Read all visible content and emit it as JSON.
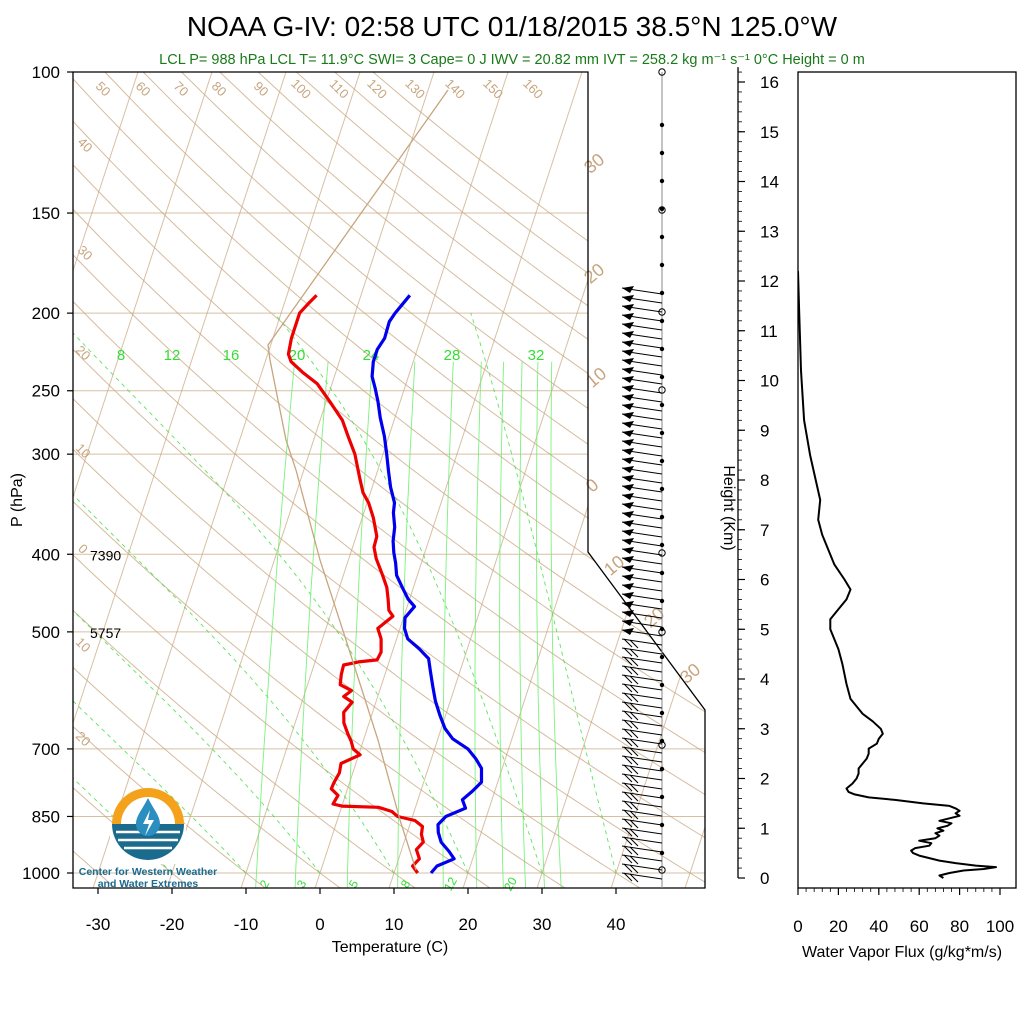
{
  "title": "NOAA G-IV: 02:58 UTC 01/18/2015  38.5°N 125.0°W",
  "subtitle": "LCL P= 988 hPa  LCL T= 11.9°C  SWI= 3  Cape= 0 J  IWV = 20.82 mm  IVT = 258.2 kg m⁻¹ s⁻¹  0°C Height = 0 m",
  "colors": {
    "temperature": "#ee0000",
    "dewpoint_line": "#0000ee",
    "background": "#c7a57e",
    "mixing_ratio": "#33dd33",
    "flux": "#000000"
  },
  "logo": {
    "line1": "Center for Western Weather",
    "line2": "and Water Extremes",
    "icon": "water-drop-logo-icon"
  },
  "chart_data": [
    {
      "type": "line",
      "xlabel": "Temperature (C)",
      "ylabel": "P (hPa)",
      "xlim": [
        -34,
        52
      ],
      "ylim": [
        1050,
        100
      ],
      "yscale": "log",
      "x_ticks": [
        -30,
        -20,
        -10,
        0,
        10,
        20,
        30,
        40
      ],
      "y_ticks": [
        100,
        150,
        200,
        250,
        300,
        400,
        500,
        700,
        850,
        1000
      ],
      "height_annotations": [
        {
          "p": 400,
          "text": "7390"
        },
        {
          "p": 500,
          "text": "5757"
        }
      ],
      "dry_adiabat_labels": [
        "50",
        "60",
        "70",
        "80",
        "90",
        "100",
        "110",
        "120",
        "130",
        "140",
        "150",
        "160",
        "40",
        "30",
        "20",
        "10",
        "0",
        "10",
        "20"
      ],
      "moist_adiabat_labels": [
        "30",
        "20",
        "10",
        "0",
        "10",
        "20",
        "30"
      ],
      "mixing_ratio_labels_top": [
        "8",
        "12",
        "16",
        "20",
        "24",
        "28",
        "32"
      ],
      "mixing_ratio_labels_bottom": [
        "2",
        "3",
        "5",
        "8",
        "12",
        "20"
      ],
      "series": [
        {
          "name": "",
          "color": "#ee0000",
          "points": [
            [
              13.2,
              1000
            ],
            [
              12.2,
              980
            ],
            [
              12.8,
              960
            ],
            [
              12.0,
              935
            ],
            [
              12.6,
              915
            ],
            [
              12.0,
              895
            ],
            [
              11.8,
              875
            ],
            [
              10.5,
              860
            ],
            [
              8.0,
              850
            ],
            [
              7.0,
              838
            ],
            [
              5.0,
              828
            ],
            [
              0.0,
              825
            ],
            [
              -1.3,
              820
            ],
            [
              -1.0,
              800
            ],
            [
              -2.2,
              785
            ],
            [
              -2.1,
              770
            ],
            [
              -1.8,
              750
            ],
            [
              -2.0,
              730
            ],
            [
              0.2,
              712
            ],
            [
              -1.0,
              700
            ],
            [
              -1.6,
              685
            ],
            [
              -2.4,
              670
            ],
            [
              -3.4,
              650
            ],
            [
              -3.9,
              630
            ],
            [
              -3.2,
              612
            ],
            [
              -4.6,
              602
            ],
            [
              -3.8,
              592
            ],
            [
              -5.6,
              582
            ],
            [
              -5.9,
              565
            ],
            [
              -6.0,
              550
            ],
            [
              -4.1,
              545
            ],
            [
              -1.7,
              542
            ],
            [
              -1.5,
              530
            ],
            [
              -2.1,
              510
            ],
            [
              -3.0,
              495
            ],
            [
              -1.5,
              478
            ],
            [
              -2.3,
              470
            ],
            [
              -2.9,
              455
            ],
            [
              -3.6,
              440
            ],
            [
              -4.7,
              425
            ],
            [
              -6.3,
              405
            ],
            [
              -7.1,
              392
            ],
            [
              -7.2,
              380
            ],
            [
              -8.5,
              360
            ],
            [
              -9.8,
              345
            ],
            [
              -11.0,
              335
            ],
            [
              -12.2,
              320
            ],
            [
              -13.8,
              300
            ],
            [
              -15.5,
              285
            ],
            [
              -17.0,
              272
            ],
            [
              -19.5,
              258
            ],
            [
              -22.0,
              245
            ],
            [
              -24.5,
              237
            ],
            [
              -26.5,
              230
            ],
            [
              -27.2,
              225
            ],
            [
              -27.5,
              215
            ],
            [
              -27.5,
              200
            ],
            [
              -26.8,
              195
            ],
            [
              -26.0,
              190
            ]
          ]
        },
        {
          "name": "",
          "color": "#0000ee",
          "points": [
            [
              15.0,
              1000
            ],
            [
              15.5,
              980
            ],
            [
              17.5,
              960
            ],
            [
              16.5,
              940
            ],
            [
              15.0,
              915
            ],
            [
              14.2,
              890
            ],
            [
              13.8,
              870
            ],
            [
              14.5,
              850
            ],
            [
              16.8,
              830
            ],
            [
              16.0,
              810
            ],
            [
              17.0,
              790
            ],
            [
              17.8,
              770
            ],
            [
              17.2,
              740
            ],
            [
              16.0,
              720
            ],
            [
              14.5,
              700
            ],
            [
              12.0,
              680
            ],
            [
              10.5,
              660
            ],
            [
              9.2,
              635
            ],
            [
              8.0,
              610
            ],
            [
              7.0,
              585
            ],
            [
              6.0,
              560
            ],
            [
              5.2,
              540
            ],
            [
              3.5,
              525
            ],
            [
              1.5,
              510
            ],
            [
              0.6,
              495
            ],
            [
              0.2,
              480
            ],
            [
              1.0,
              465
            ],
            [
              -0.2,
              455
            ],
            [
              -1.5,
              440
            ],
            [
              -2.8,
              425
            ],
            [
              -3.5,
              410
            ],
            [
              -4.2,
              398
            ],
            [
              -4.8,
              385
            ],
            [
              -5.2,
              370
            ],
            [
              -6.0,
              355
            ],
            [
              -6.3,
              345
            ],
            [
              -7.5,
              330
            ],
            [
              -8.5,
              315
            ],
            [
              -9.5,
              300
            ],
            [
              -10.6,
              285
            ],
            [
              -12.0,
              270
            ],
            [
              -13.0,
              258
            ],
            [
              -14.0,
              248
            ],
            [
              -14.9,
              240
            ],
            [
              -15.4,
              230
            ],
            [
              -15.4,
              222
            ],
            [
              -14.9,
              215
            ],
            [
              -15.0,
              205
            ],
            [
              -14.6,
              200
            ],
            [
              -14.0,
              195
            ],
            [
              -13.4,
              190
            ]
          ]
        }
      ]
    },
    {
      "type": "line",
      "xlabel": "Water Vapor Flux (g/kg*m/s)",
      "ylabel": "Height (Km)",
      "xlim": [
        0,
        100
      ],
      "ylim": [
        0,
        16.5
      ],
      "x_ticks": [
        0,
        20,
        40,
        60,
        80,
        100
      ],
      "y_ticks": [
        0,
        1,
        2,
        3,
        4,
        5,
        6,
        7,
        8,
        9,
        10,
        11,
        12,
        13,
        14,
        15,
        16
      ],
      "series": [
        {
          "name": "",
          "color": "#000000",
          "points": [
            [
              72,
              0.0
            ],
            [
              70,
              0.05
            ],
            [
              75,
              0.1
            ],
            [
              82,
              0.15
            ],
            [
              92,
              0.18
            ],
            [
              98,
              0.22
            ],
            [
              88,
              0.25
            ],
            [
              78,
              0.3
            ],
            [
              70,
              0.35
            ],
            [
              65,
              0.4
            ],
            [
              60,
              0.45
            ],
            [
              57,
              0.5
            ],
            [
              56,
              0.55
            ],
            [
              58,
              0.6
            ],
            [
              65,
              0.65
            ],
            [
              66,
              0.7
            ],
            [
              60,
              0.75
            ],
            [
              68,
              0.8
            ],
            [
              70,
              0.85
            ],
            [
              68,
              0.9
            ],
            [
              72,
              0.95
            ],
            [
              69,
              1.0
            ],
            [
              74,
              1.05
            ],
            [
              76,
              1.1
            ],
            [
              70,
              1.15
            ],
            [
              75,
              1.2
            ],
            [
              80,
              1.25
            ],
            [
              78,
              1.3
            ],
            [
              80,
              1.35
            ],
            [
              78,
              1.4
            ],
            [
              75,
              1.45
            ],
            [
              62,
              1.5
            ],
            [
              48,
              1.57
            ],
            [
              35,
              1.62
            ],
            [
              28,
              1.68
            ],
            [
              25,
              1.73
            ],
            [
              24,
              1.8
            ],
            [
              27,
              1.9
            ],
            [
              29,
              2.0
            ],
            [
              30,
              2.1
            ],
            [
              30,
              2.2
            ],
            [
              32,
              2.3
            ],
            [
              34,
              2.4
            ],
            [
              35,
              2.5
            ],
            [
              35,
              2.6
            ],
            [
              39,
              2.7
            ],
            [
              40,
              2.8
            ],
            [
              42,
              2.9
            ],
            [
              41,
              3.0
            ],
            [
              37,
              3.15
            ],
            [
              32,
              3.3
            ],
            [
              26,
              3.6
            ],
            [
              24,
              3.9
            ],
            [
              22,
              4.3
            ],
            [
              20,
              4.6
            ],
            [
              16,
              5.0
            ],
            [
              16,
              5.2
            ],
            [
              20,
              5.4
            ],
            [
              24,
              5.6
            ],
            [
              26,
              5.8
            ],
            [
              23,
              6.0
            ],
            [
              18,
              6.3
            ],
            [
              12,
              6.9
            ],
            [
              10,
              7.2
            ],
            [
              11,
              7.6
            ],
            [
              6,
              8.5
            ],
            [
              3,
              9.2
            ],
            [
              1.5,
              10.2
            ],
            [
              0.5,
              11.5
            ],
            [
              0,
              12.2
            ]
          ]
        }
      ]
    }
  ]
}
